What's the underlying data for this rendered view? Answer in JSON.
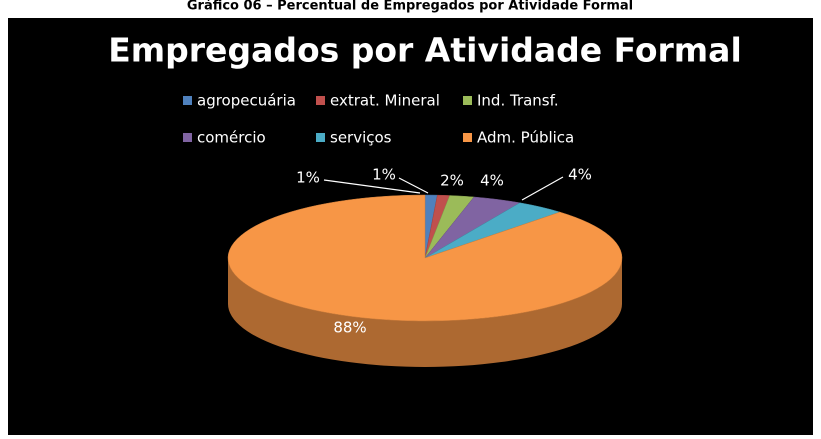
{
  "chart_data": {
    "type": "pie",
    "caption": "Gráfico 06 – Percentual de Empregados por Atividade Formal",
    "title": "Empregados por Atividade Formal",
    "categories": [
      "agropecuária",
      "extrat. Mineral",
      "Ind. Transf.",
      "comércio",
      "serviços",
      "Adm. Pública"
    ],
    "values": [
      1,
      1,
      2,
      4,
      4,
      88
    ],
    "value_labels": [
      "1%",
      "1%",
      "2%",
      "4%",
      "4%",
      "88%"
    ],
    "colors": [
      "#4f81bd",
      "#c0504d",
      "#9bbb59",
      "#8064a2",
      "#4bacc6",
      "#f79646"
    ],
    "legend": "top"
  }
}
